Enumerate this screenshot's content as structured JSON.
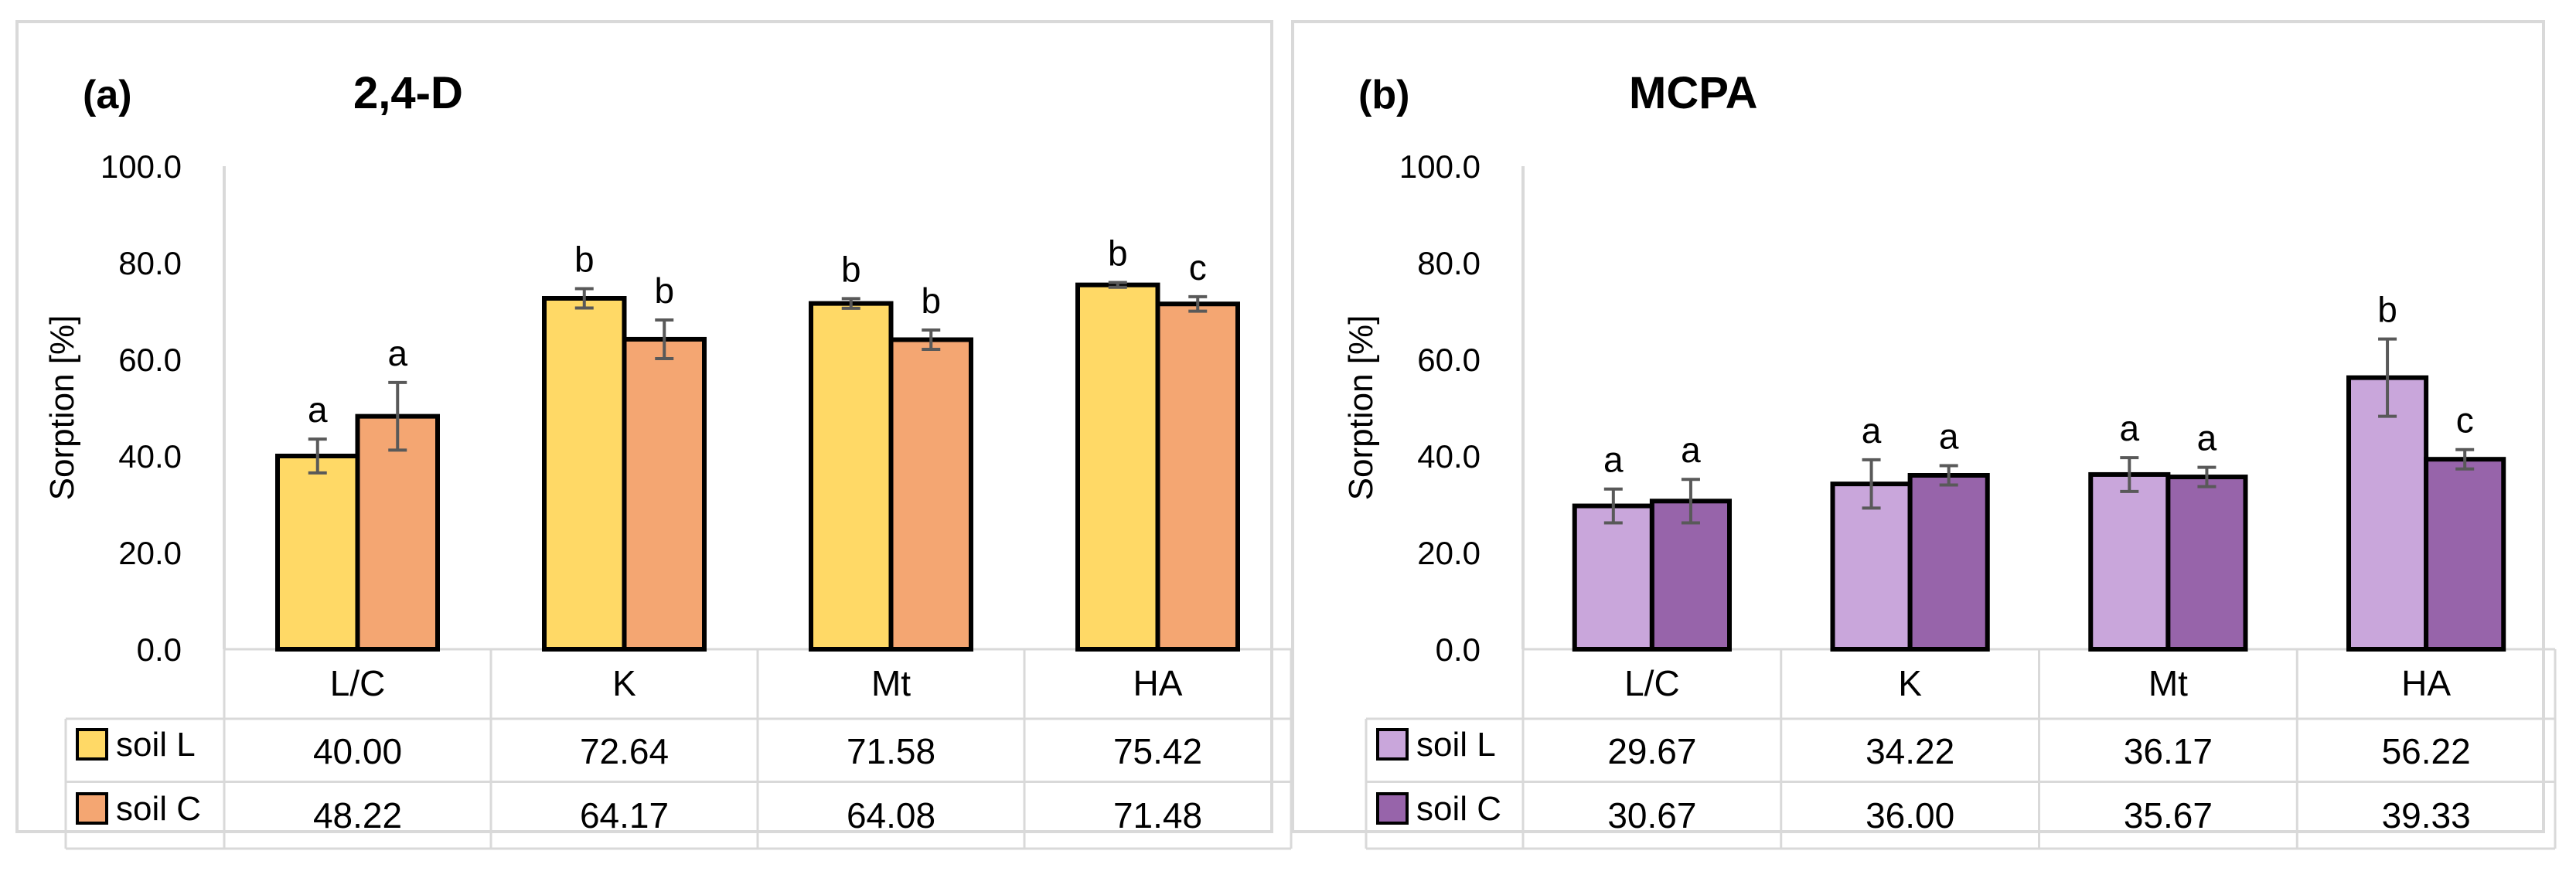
{
  "chart_data": [
    {
      "type": "bar",
      "panel_label": "(a)",
      "title": "2,4-D",
      "ylabel": "Sorption  [%]",
      "ylim": [
        0,
        100
      ],
      "yticks": [
        "0.0",
        "20.0",
        "40.0",
        "60.0",
        "80.0",
        "100.0"
      ],
      "categories": [
        "L/C",
        "K",
        "Mt",
        "HA"
      ],
      "series": [
        {
          "name": "soil L",
          "color": "#ffd966",
          "values": [
            40.0,
            72.64,
            71.58,
            75.42
          ],
          "value_labels": [
            "40.00",
            "72.64",
            "71.58",
            "75.42"
          ],
          "errors": [
            3.5,
            2.0,
            1.0,
            0.5
          ],
          "letters": [
            "a",
            "b",
            "b",
            "b"
          ]
        },
        {
          "name": "soil C",
          "color": "#f4a672",
          "values": [
            48.22,
            64.17,
            64.08,
            71.48
          ],
          "value_labels": [
            "48.22",
            "64.17",
            "64.08",
            "71.48"
          ],
          "errors": [
            7.0,
            4.0,
            2.0,
            1.5
          ],
          "letters": [
            "a",
            "b",
            "b",
            "c"
          ]
        }
      ]
    },
    {
      "type": "bar",
      "panel_label": "(b)",
      "title": "MCPA",
      "ylabel": "Sorption  [%]",
      "ylim": [
        0,
        100
      ],
      "yticks": [
        "0.0",
        "20.0",
        "40.0",
        "60.0",
        "80.0",
        "100.0"
      ],
      "categories": [
        "L/C",
        "K",
        "Mt",
        "HA"
      ],
      "series": [
        {
          "name": "soil L",
          "color": "#c9a6db",
          "values": [
            29.67,
            34.22,
            36.17,
            56.22
          ],
          "value_labels": [
            "29.67",
            "34.22",
            "36.17",
            "56.22"
          ],
          "errors": [
            3.5,
            5.0,
            3.5,
            8.0
          ],
          "letters": [
            "a",
            "a",
            "a",
            "b"
          ]
        },
        {
          "name": "soil C",
          "color": "#9764aa",
          "values": [
            30.67,
            36.0,
            35.67,
            39.33
          ],
          "value_labels": [
            "30.67",
            "36.00",
            "35.67",
            "39.33"
          ],
          "errors": [
            4.5,
            2.0,
            2.0,
            2.0
          ],
          "letters": [
            "a",
            "a",
            "a",
            "c"
          ]
        }
      ]
    }
  ]
}
